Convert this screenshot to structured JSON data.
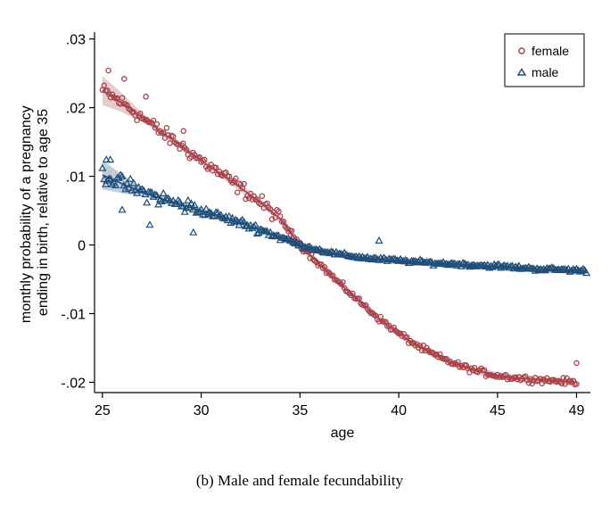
{
  "chart_data": {
    "type": "scatter",
    "title": "",
    "xlabel": "age",
    "ylabel": "monthly probability of a pregnancy ending in birth, relative to age 35",
    "ylabel_lines": [
      "monthly probability of a pregnancy",
      "ending in birth, relative to age 35"
    ],
    "caption": "(b) Male and female fecundability",
    "xlim": [
      24.6,
      49.7
    ],
    "ylim": [
      -0.0215,
      0.031
    ],
    "x_ticks": [
      25,
      30,
      35,
      40,
      45,
      49
    ],
    "x_tick_labels": [
      "25",
      "30",
      "35",
      "40",
      "45",
      "49"
    ],
    "y_ticks": [
      -0.02,
      -0.01,
      0,
      0.01,
      0.02,
      0.03
    ],
    "y_tick_labels": [
      "-.02",
      "-.01",
      "0",
      ".01",
      ".02",
      ".03"
    ],
    "grid": false,
    "legend_position": "top-right",
    "series": [
      {
        "name": "female",
        "marker": "circle",
        "color": "#a8434b",
        "age_range": [
          25,
          49
        ],
        "fit_curve": {
          "x": [
            25,
            26,
            27,
            28,
            29,
            30,
            31,
            32,
            33,
            34,
            35,
            36,
            37,
            38,
            39,
            40,
            41,
            42,
            43,
            44,
            45,
            46,
            47,
            48,
            49
          ],
          "y": [
            0.0225,
            0.0207,
            0.0186,
            0.0164,
            0.0144,
            0.0123,
            0.0103,
            0.0083,
            0.0062,
            0.0038,
            0.0,
            -0.0028,
            -0.0056,
            -0.0082,
            -0.0107,
            -0.0129,
            -0.0148,
            -0.0163,
            -0.0175,
            -0.0184,
            -0.019,
            -0.0194,
            -0.0196,
            -0.0198,
            -0.02
          ]
        },
        "highlight_points": [
          {
            "x": 25.3,
            "y": 0.0254
          },
          {
            "x": 26.1,
            "y": 0.0242
          },
          {
            "x": 27.2,
            "y": 0.0216
          },
          {
            "x": 29.1,
            "y": 0.0166
          },
          {
            "x": 49.0,
            "y": -0.0172
          }
        ]
      },
      {
        "name": "male",
        "marker": "triangle",
        "color": "#1f4e79",
        "age_range": [
          25,
          49.5
        ],
        "fit_curve": {
          "x": [
            25,
            26,
            27,
            28,
            29,
            30,
            31,
            32,
            33,
            34,
            35,
            36,
            37,
            38,
            39,
            40,
            41,
            42,
            43,
            44,
            45,
            46,
            47,
            48,
            49,
            49.5
          ],
          "y": [
            0.0102,
            0.0089,
            0.0077,
            0.0067,
            0.0058,
            0.005,
            0.0041,
            0.0032,
            0.0022,
            0.0011,
            0.0,
            -0.0008,
            -0.0014,
            -0.0018,
            -0.0021,
            -0.0023,
            -0.0025,
            -0.0027,
            -0.0028,
            -0.003,
            -0.0031,
            -0.0033,
            -0.0035,
            -0.0036,
            -0.0037,
            -0.0038
          ]
        },
        "highlight_points": [
          {
            "x": 25.2,
            "y": 0.0124
          },
          {
            "x": 25.4,
            "y": 0.0124
          },
          {
            "x": 26.0,
            "y": 0.0051
          },
          {
            "x": 27.4,
            "y": 0.0029
          },
          {
            "x": 29.6,
            "y": 0.0018
          },
          {
            "x": 39.0,
            "y": 0.0006
          }
        ]
      }
    ]
  }
}
